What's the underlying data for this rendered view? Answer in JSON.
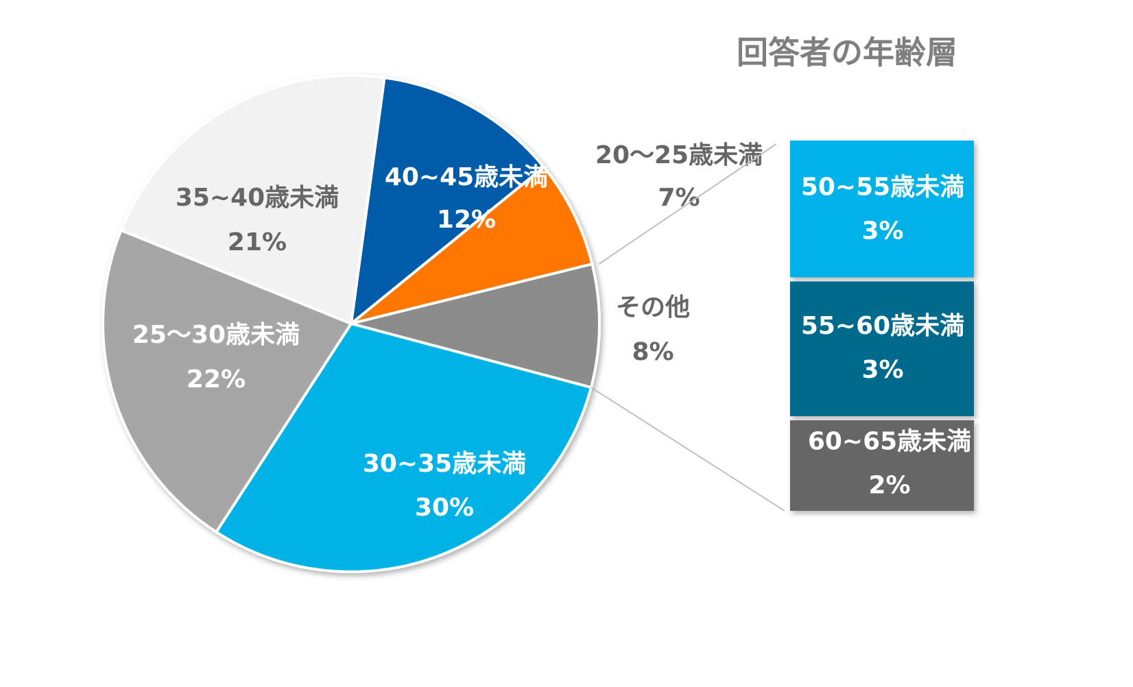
{
  "chart_data": {
    "type": "bar-of-pie",
    "title": "回答者の年齢層",
    "categories": [
      "40~45歳未満",
      "20～25歳未満",
      "その他",
      "30~35歳未満",
      "25～30歳未満",
      "35~40歳未満"
    ],
    "values": [
      12,
      7,
      8,
      30,
      22,
      21
    ],
    "value_labels": [
      "12%",
      "7%",
      "8%",
      "30%",
      "22%",
      "21%"
    ],
    "colors": [
      "#005ba8",
      "#ff7700",
      "#8c8c8c",
      "#00b2e5",
      "#a6a6a6",
      "#f2f2f2"
    ],
    "breakdown": {
      "categories": [
        "50~55歳未満",
        "55~60歳未満",
        "60~65歳未満"
      ],
      "values": [
        3,
        3,
        2
      ],
      "value_labels": [
        "3%",
        "3%",
        "2%"
      ],
      "colors": [
        "#00b2e8",
        "#006a8c",
        "#666666"
      ]
    }
  }
}
